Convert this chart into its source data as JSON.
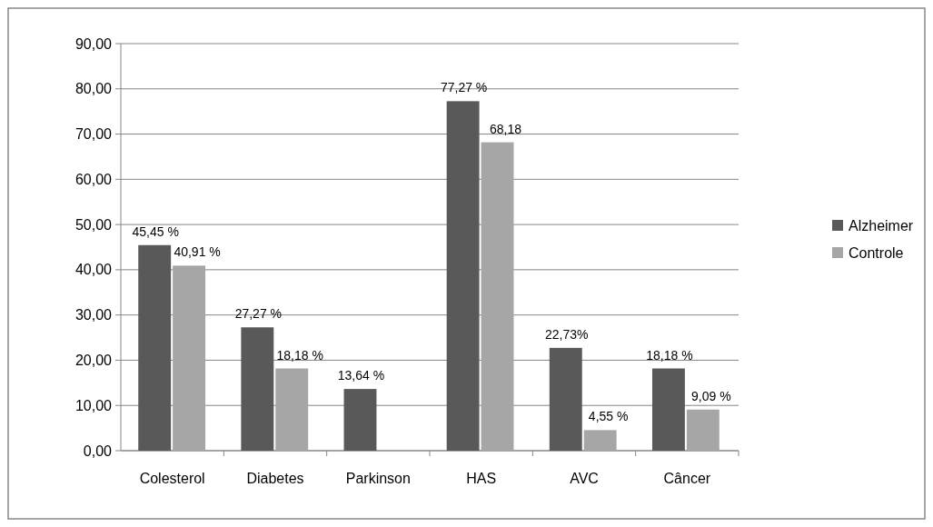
{
  "chart_data": {
    "type": "bar",
    "categories": [
      "Colesterol",
      "Diabetes",
      "Parkinson",
      "HAS",
      "AVC",
      "Câncer"
    ],
    "series": [
      {
        "name": "Alzheimer",
        "color": "#595959",
        "values": [
          45.45,
          27.27,
          13.64,
          77.27,
          22.73,
          18.18
        ],
        "value_labels": [
          "45,45 %",
          "27,27 %",
          "13,64 %",
          "77,27 %",
          "22,73%",
          "18,18 %"
        ]
      },
      {
        "name": "Controle",
        "color": "#a6a6a6",
        "values": [
          40.91,
          18.18,
          null,
          68.18,
          4.55,
          9.09
        ],
        "value_labels": [
          "40,91 %",
          "18,18 %",
          null,
          "68,18",
          "4,55 %",
          "9,09 %"
        ]
      }
    ],
    "ylim": [
      0,
      90
    ],
    "yticks": [
      {
        "value": 0,
        "label": "0,00"
      },
      {
        "value": 10,
        "label": "10,00"
      },
      {
        "value": 20,
        "label": "20,00"
      },
      {
        "value": 30,
        "label": "30,00"
      },
      {
        "value": 40,
        "label": "40,00"
      },
      {
        "value": 50,
        "label": "50,00"
      },
      {
        "value": 60,
        "label": "60,00"
      },
      {
        "value": 70,
        "label": "70,00"
      },
      {
        "value": 80,
        "label": "80,00"
      },
      {
        "value": 90,
        "label": "90,00"
      }
    ],
    "grid": "y",
    "legend": "right"
  }
}
